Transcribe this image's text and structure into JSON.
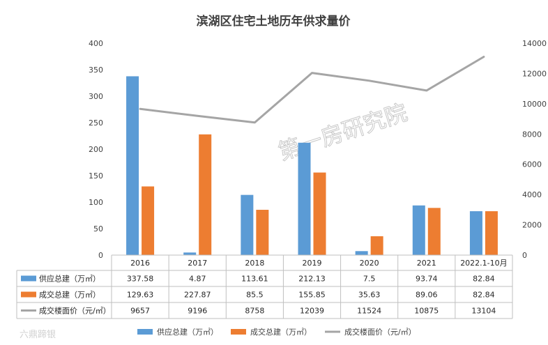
{
  "chart_data": {
    "type": "bar+line",
    "title": "滨湖区住宅土地历年供求量价",
    "categories": [
      "2016",
      "2017",
      "2018",
      "2019",
      "2020",
      "2021",
      "2022.1-10月"
    ],
    "series": [
      {
        "name": "供应总建（万㎡）",
        "type": "bar",
        "axis": "left",
        "color": "#5b9bd5",
        "values": [
          337.58,
          4.87,
          113.61,
          212.13,
          7.5,
          93.74,
          82.84
        ],
        "labels": [
          "337.58",
          "4.87",
          "113.61",
          "212.13",
          "7.5",
          "93.74",
          "82.84"
        ]
      },
      {
        "name": "成交总建（万㎡）",
        "type": "bar",
        "axis": "left",
        "color": "#ed7d31",
        "values": [
          129.63,
          227.87,
          85.5,
          155.85,
          35.63,
          89.06,
          82.84
        ],
        "labels": [
          "129.63",
          "227.87",
          "85.5",
          "155.85",
          "35.63",
          "89.06",
          "82.84"
        ]
      },
      {
        "name": "成交楼面价（元/㎡）",
        "type": "line",
        "axis": "right",
        "color": "#a5a5a5",
        "values": [
          9657,
          9196,
          8758,
          12039,
          11524,
          10875,
          13104
        ],
        "labels": [
          "9657",
          "9196",
          "8758",
          "12039",
          "11524",
          "10875",
          "13104"
        ]
      }
    ],
    "y_left": {
      "min": 0,
      "max": 400,
      "ticks": [
        "0",
        "50",
        "100",
        "150",
        "200",
        "250",
        "300",
        "350",
        "400"
      ]
    },
    "y_right": {
      "min": 0,
      "max": 14000,
      "ticks": [
        "0",
        "2000",
        "4000",
        "6000",
        "8000",
        "10000",
        "12000",
        "14000"
      ]
    },
    "grid": false,
    "legend": "bottom"
  },
  "watermark": "第一房研究院",
  "footer_watermark": "六鼎蹄银"
}
